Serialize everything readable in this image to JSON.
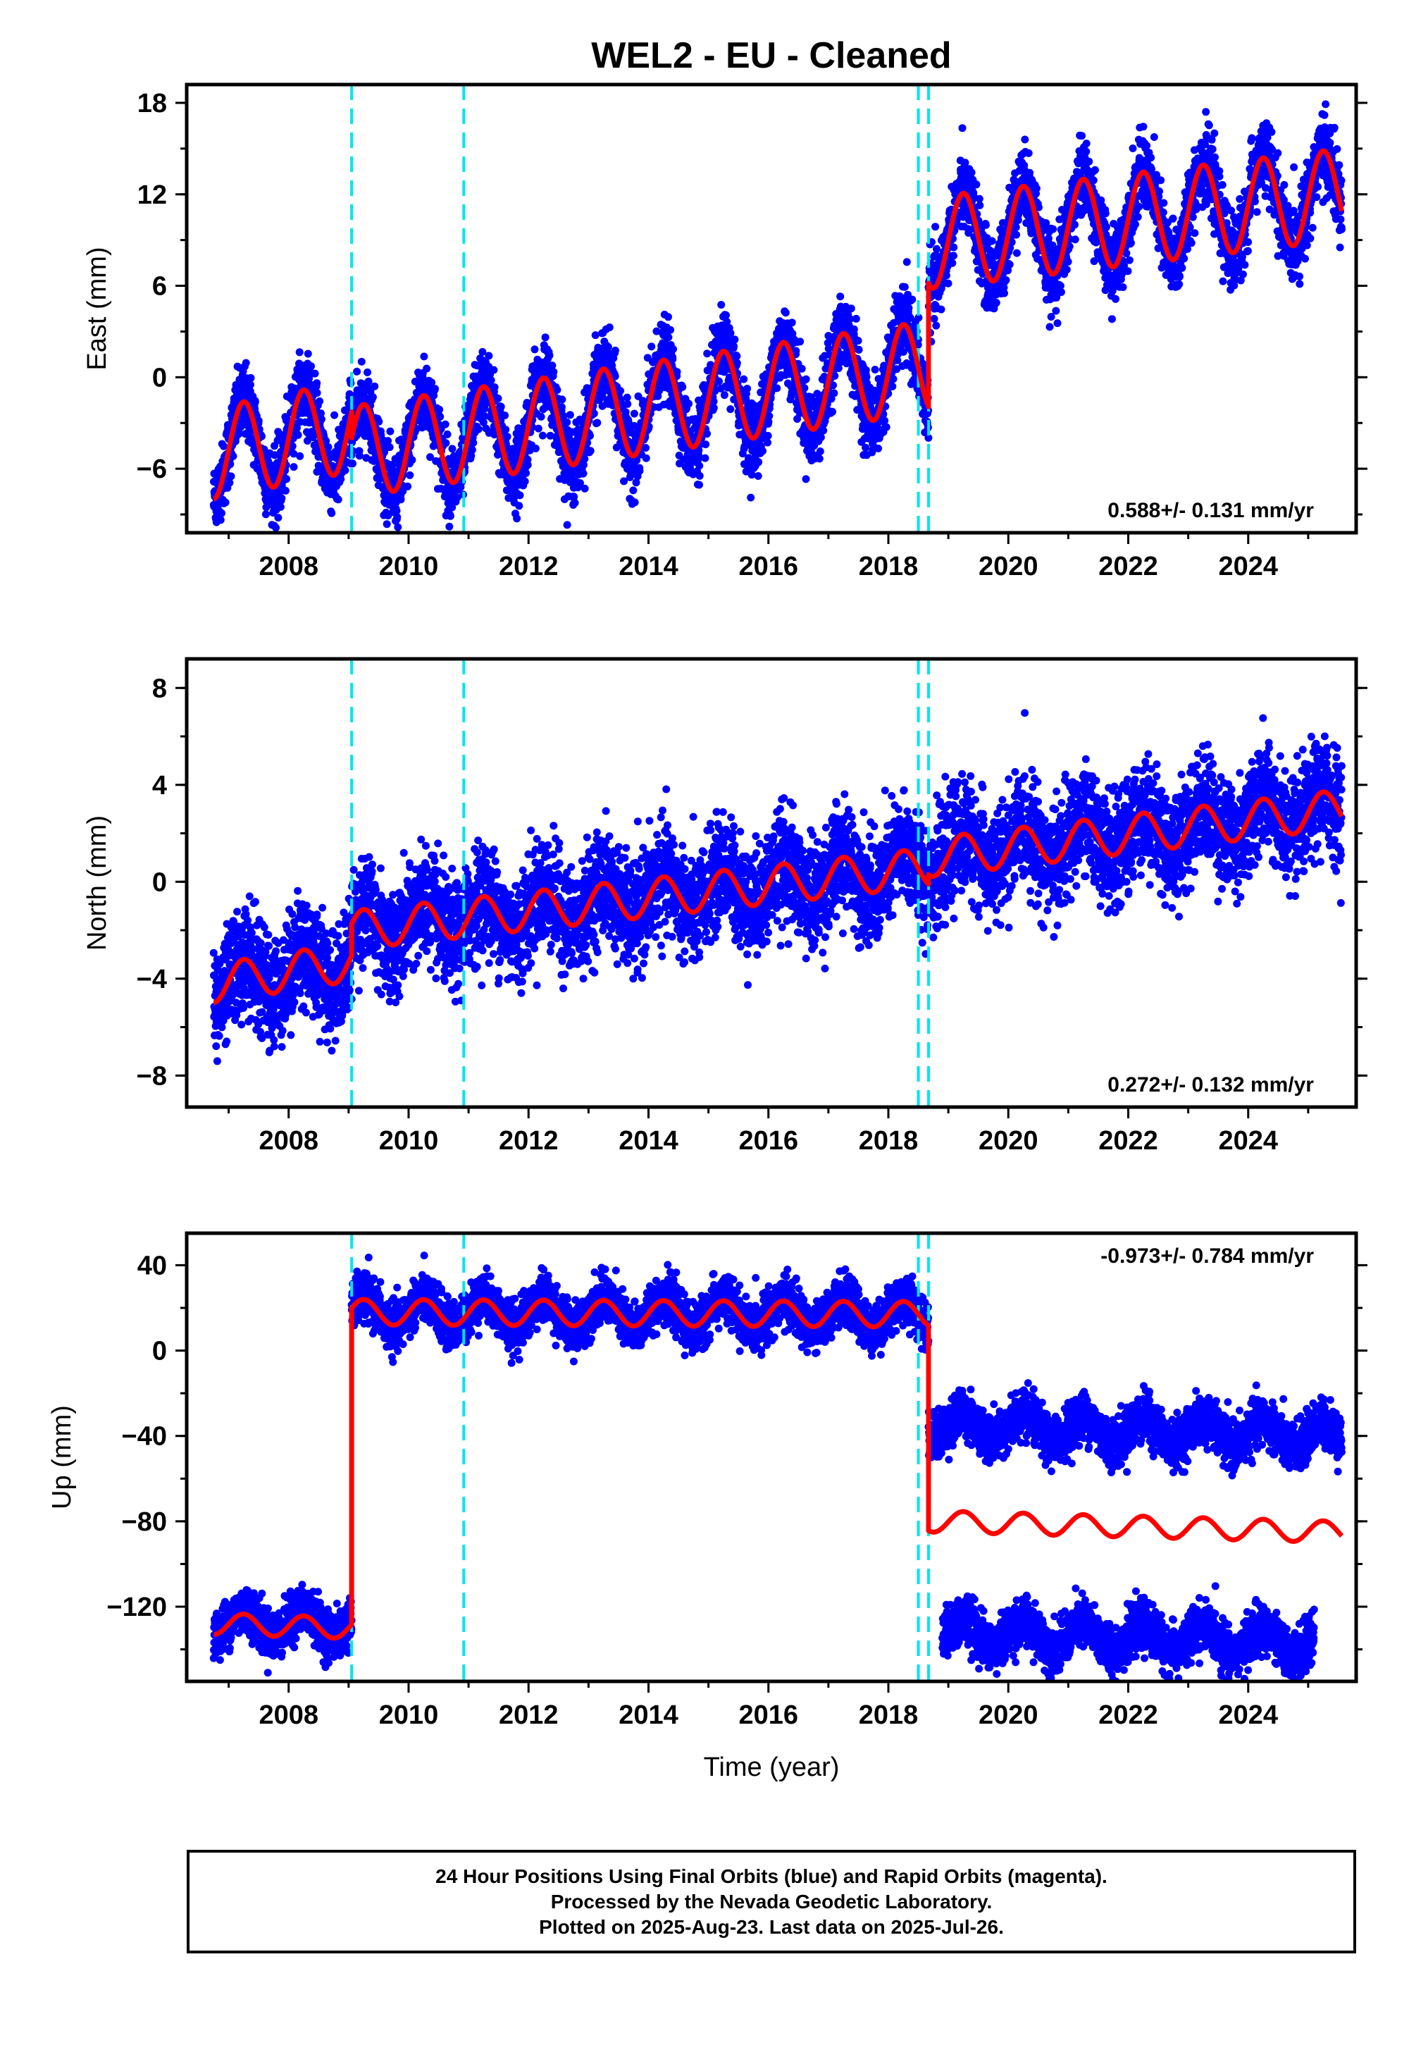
{
  "figure": {
    "title": "WEL2  - EU - Cleaned",
    "xlabel": "Time (year)"
  },
  "colors": {
    "data_points": "#0000ff",
    "model_fit": "#ff0000",
    "offset_lines": "#00e5ee",
    "frame": "#000000"
  },
  "offset_epochs": [
    2009.05,
    2010.92,
    2018.5,
    2018.67
  ],
  "chart_data": [
    {
      "type": "scatter",
      "panel": "east",
      "ylabel": "East (mm)",
      "rate_label": "0.588+/- 0.131 mm/yr",
      "xlim": [
        2006.3,
        2025.8
      ],
      "ylim": [
        -10.2,
        19.2
      ],
      "x_ticks": [
        2008,
        2010,
        2012,
        2014,
        2016,
        2018,
        2020,
        2022,
        2024
      ],
      "y_ticks": [
        18,
        12,
        6,
        0,
        -6
      ],
      "y_tick_labels": [
        "18",
        "12",
        "6",
        "0",
        "−6"
      ],
      "series": [
        {
          "role": "points",
          "segments": [
            {
              "x_range": [
                2006.75,
                2009.05
              ],
              "start": -5.0,
              "end": -3.2,
              "amp": 3.0,
              "phase": 0.0
            },
            {
              "x_range": [
                2009.05,
                2018.67
              ],
              "start": -4.9,
              "end": 0.7,
              "amp": 3.0,
              "phase": 0.0
            },
            {
              "x_range": [
                2018.67,
                2025.56
              ],
              "start": 8.8,
              "end": 12.0,
              "amp": 3.0,
              "phase": 0.0
            }
          ],
          "scatter_sd": 1.2
        },
        {
          "role": "model",
          "color": "#ff0000"
        }
      ]
    },
    {
      "type": "scatter",
      "panel": "north",
      "ylabel": "North (mm)",
      "rate_label": "0.272+/- 0.132 mm/yr",
      "xlim": [
        2006.3,
        2025.8
      ],
      "ylim": [
        -9.3,
        9.2
      ],
      "x_ticks": [
        2008,
        2010,
        2012,
        2014,
        2016,
        2018,
        2020,
        2022,
        2024
      ],
      "y_ticks": [
        8,
        4,
        0,
        -4,
        -8
      ],
      "y_tick_labels": [
        "8",
        "4",
        "0",
        "−4",
        "−8"
      ],
      "series": [
        {
          "role": "points",
          "segments": [
            {
              "x_range": [
                2006.75,
                2009.05
              ],
              "start": -4.2,
              "end": -3.3,
              "amp": 0.8,
              "phase": 0.0
            },
            {
              "x_range": [
                2009.05,
                2018.67
              ],
              "start": -2.0,
              "end": 0.6,
              "amp": 0.8,
              "phase": 0.0
            },
            {
              "x_range": [
                2018.67,
                2025.56
              ],
              "start": 1.0,
              "end": 3.0,
              "amp": 0.8,
              "phase": 0.0
            }
          ],
          "scatter_sd": 1.1
        },
        {
          "role": "model",
          "color": "#ff0000"
        }
      ]
    },
    {
      "type": "scatter",
      "panel": "up",
      "ylabel": "Up (mm)",
      "rate_label": "-0.973+/- 0.784 mm/yr",
      "xlim": [
        2006.3,
        2025.8
      ],
      "ylim": [
        -155,
        55
      ],
      "x_ticks": [
        2008,
        2010,
        2012,
        2014,
        2016,
        2018,
        2020,
        2022,
        2024
      ],
      "y_ticks": [
        40,
        0,
        -40,
        -80,
        -120
      ],
      "y_tick_labels": [
        "40",
        "0",
        "−40",
        "−80",
        "−120"
      ],
      "series": [
        {
          "role": "points",
          "segments": [
            {
              "x_range": [
                2006.75,
                2009.05
              ],
              "start": -127,
              "end": -128,
              "amp": 6,
              "phase": 0.0
            },
            {
              "x_range": [
                2009.05,
                2018.67
              ],
              "start": 18,
              "end": 17,
              "amp": 7,
              "phase": 0.0
            },
            {
              "x_range": [
                2018.67,
                2025.56
              ],
              "start": -35,
              "end": -40,
              "amp": 6,
              "phase": 0.0
            },
            {
              "x_range": [
                2018.9,
                2025.1
              ],
              "start": -132,
              "end": -137,
              "amp": 6,
              "phase": 0.0
            }
          ],
          "scatter_sd": 5.5
        },
        {
          "role": "model",
          "color": "#ff0000",
          "segments": [
            {
              "x_range": [
                2006.75,
                2009.05
              ],
              "start": -128,
              "end": -130,
              "amp": 5,
              "phase": 0.0
            },
            {
              "x_range": [
                2009.05,
                2018.67
              ],
              "start": 18,
              "end": 17,
              "amp": 6,
              "phase": 0.0
            },
            {
              "x_range": [
                2018.67,
                2025.56
              ],
              "start": -80,
              "end": -85,
              "amp": 5,
              "phase": 0.0
            }
          ]
        }
      ]
    }
  ],
  "caption": {
    "lines": [
      "24 Hour Positions Using Final Orbits (blue) and Rapid Orbits (magenta).",
      "Processed by the Nevada Geodetic Laboratory.",
      "Plotted on 2025-Aug-23. Last data on 2025-Jul-26."
    ]
  }
}
